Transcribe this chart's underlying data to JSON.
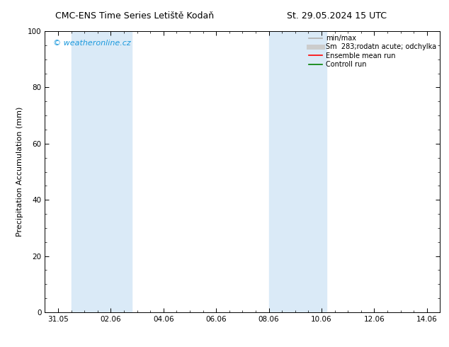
{
  "title_left": "CMC-ENS Time Series Letiště Kodaň",
  "title_right": "St. 29.05.2024 15 UTC",
  "ylabel": "Precipitation Accumulation (mm)",
  "ylim": [
    0,
    100
  ],
  "yticks": [
    0,
    20,
    40,
    60,
    80,
    100
  ],
  "xtick_positions": [
    1,
    3,
    5,
    7,
    9,
    11,
    13,
    15
  ],
  "xtick_labels": [
    "31.05",
    "02.06",
    "04.06",
    "06.06",
    "08.06",
    "10.06",
    "12.06",
    "14.06"
  ],
  "xlim": [
    0.5,
    15.5
  ],
  "shaded_regions": [
    {
      "xmin": 1.5,
      "xmax": 3.8,
      "color": "#daeaf7"
    },
    {
      "xmin": 9.0,
      "xmax": 11.2,
      "color": "#daeaf7"
    }
  ],
  "watermark_text": "© weatheronline.cz",
  "watermark_color": "#1a99dd",
  "legend_entries": [
    {
      "label": "min/max",
      "color": "#b0b0b0",
      "lw": 1.2
    },
    {
      "label": "Sm  283;rodatn acute; odchylka",
      "color": "#cccccc",
      "lw": 5
    },
    {
      "label": "Ensemble mean run",
      "color": "#ff0000",
      "lw": 1.2
    },
    {
      "label": "Controll run",
      "color": "#008000",
      "lw": 1.2
    }
  ],
  "bg_color": "#ffffff",
  "plot_area_color": "#ffffff",
  "tick_color": "#000000",
  "spine_color": "#000000",
  "fontsize_title": 9,
  "fontsize_axis": 8,
  "fontsize_tick": 7.5,
  "fontsize_legend": 7,
  "fontsize_watermark": 8
}
